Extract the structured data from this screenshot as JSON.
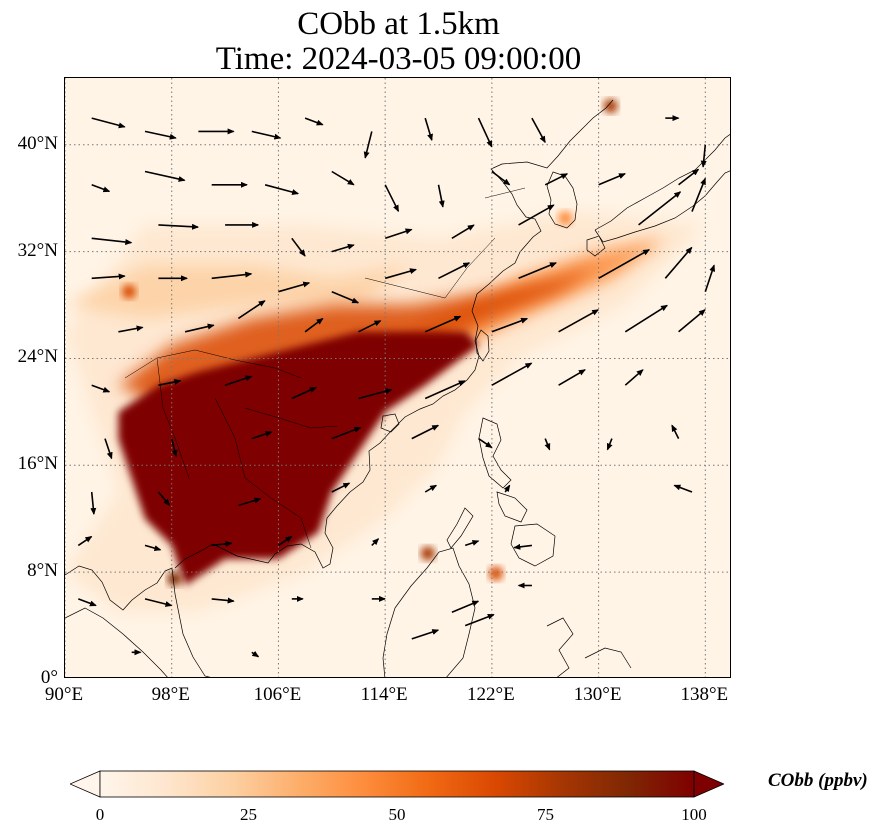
{
  "title": {
    "line1": "CObb at 1.5km",
    "line2": "Time: 2024-03-05 09:00:00"
  },
  "map": {
    "projection": "PlateCarree",
    "extent": {
      "lon_min": 90,
      "lon_max": 140,
      "lat_min": 0,
      "lat_max": 45
    },
    "gridlines": "dotted gray",
    "background_color": "#fff4e6",
    "x_ticks": [
      {
        "lon": 90,
        "label": "90°E"
      },
      {
        "lon": 98,
        "label": "98°E"
      },
      {
        "lon": 106,
        "label": "106°E"
      },
      {
        "lon": 114,
        "label": "114°E"
      },
      {
        "lon": 122,
        "label": "122°E"
      },
      {
        "lon": 130,
        "label": "130°E"
      },
      {
        "lon": 138,
        "label": "138°E"
      }
    ],
    "y_ticks": [
      {
        "lat": 0,
        "label": "0°"
      },
      {
        "lat": 8,
        "label": "8°N"
      },
      {
        "lat": 16,
        "label": "16°N"
      },
      {
        "lat": 24,
        "label": "24°N"
      },
      {
        "lat": 32,
        "label": "32°N"
      },
      {
        "lat": 40,
        "label": "40°N"
      }
    ],
    "plume_regions": [
      {
        "name": "indochina-core",
        "level": 100,
        "polygon": [
          [
            94,
            20
          ],
          [
            97,
            22
          ],
          [
            100,
            23
          ],
          [
            104,
            24
          ],
          [
            108,
            25
          ],
          [
            112,
            26
          ],
          [
            116,
            26
          ],
          [
            120,
            26
          ],
          [
            121,
            25
          ],
          [
            117,
            22
          ],
          [
            114,
            20
          ],
          [
            112,
            17
          ],
          [
            110,
            14
          ],
          [
            109,
            11
          ],
          [
            106,
            9
          ],
          [
            102,
            9
          ],
          [
            99,
            7
          ],
          [
            98,
            10
          ],
          [
            96,
            12
          ],
          [
            95,
            15
          ],
          [
            94,
            18
          ]
        ]
      },
      {
        "name": "southchina-band",
        "level": 70,
        "polygon": [
          [
            94,
            22
          ],
          [
            98,
            25
          ],
          [
            104,
            27
          ],
          [
            110,
            28
          ],
          [
            116,
            28
          ],
          [
            122,
            29
          ],
          [
            127,
            30
          ],
          [
            130,
            31
          ],
          [
            127,
            29
          ],
          [
            122,
            27
          ],
          [
            118,
            25
          ],
          [
            114,
            23
          ],
          [
            110,
            21
          ],
          [
            104,
            21
          ],
          [
            98,
            20
          ]
        ]
      },
      {
        "name": "east-plume",
        "level": 40,
        "polygon": [
          [
            112,
            24
          ],
          [
            118,
            27
          ],
          [
            124,
            30
          ],
          [
            130,
            32
          ],
          [
            135,
            33
          ],
          [
            131,
            30
          ],
          [
            124,
            27
          ],
          [
            118,
            24
          ],
          [
            114,
            22
          ]
        ]
      },
      {
        "name": "tibet-band",
        "level": 25,
        "polygon": [
          [
            90,
            28
          ],
          [
            96,
            31
          ],
          [
            104,
            31
          ],
          [
            110,
            30
          ],
          [
            116,
            31
          ],
          [
            112,
            28
          ],
          [
            104,
            28
          ],
          [
            96,
            27
          ]
        ]
      },
      {
        "name": "outer-haze",
        "level": 15,
        "polygon": [
          [
            90,
            8
          ],
          [
            94,
            14
          ],
          [
            92,
            20
          ],
          [
            90,
            26
          ],
          [
            96,
            34
          ],
          [
            108,
            34
          ],
          [
            118,
            33
          ],
          [
            128,
            35
          ],
          [
            138,
            34
          ],
          [
            132,
            28
          ],
          [
            124,
            24
          ],
          [
            120,
            20
          ],
          [
            118,
            16
          ],
          [
            114,
            12
          ],
          [
            108,
            8
          ],
          [
            100,
            5
          ],
          [
            94,
            5
          ]
        ]
      }
    ],
    "hotspots": [
      {
        "name": "hotspot-hokkaido",
        "lon": 130.9,
        "lat": 42.9,
        "level": 80
      },
      {
        "name": "hotspot-myanmar-west",
        "lon": 94.8,
        "lat": 29.0,
        "level": 70
      },
      {
        "name": "hotspot-borneo",
        "lon": 117.2,
        "lat": 9.4,
        "level": 80
      },
      {
        "name": "hotspot-mindanao",
        "lon": 122.3,
        "lat": 7.9,
        "level": 70
      },
      {
        "name": "hotspot-sumatra",
        "lon": 98.2,
        "lat": 7.5,
        "level": 90
      },
      {
        "name": "hotspot-korea-south",
        "lon": 127.5,
        "lat": 34.5,
        "level": 45
      }
    ],
    "wind_vectors": [
      {
        "lon": 92,
        "lat": 42,
        "u": 1.5,
        "v": -0.4
      },
      {
        "lon": 96,
        "lat": 41,
        "u": 1.4,
        "v": -0.3
      },
      {
        "lon": 100,
        "lat": 41,
        "u": 1.6,
        "v": 0
      },
      {
        "lon": 104,
        "lat": 41,
        "u": 1.3,
        "v": -0.3
      },
      {
        "lon": 108,
        "lat": 42,
        "u": 0.8,
        "v": -0.3
      },
      {
        "lon": 113,
        "lat": 41,
        "u": -0.3,
        "v": -1.2
      },
      {
        "lon": 117,
        "lat": 42,
        "u": 0.3,
        "v": -1
      },
      {
        "lon": 121,
        "lat": 42,
        "u": 0.6,
        "v": -1.3
      },
      {
        "lon": 125,
        "lat": 42,
        "u": 0.6,
        "v": -1.1
      },
      {
        "lon": 135,
        "lat": 42,
        "u": 0.6,
        "v": 0
      },
      {
        "lon": 138,
        "lat": 40,
        "u": -0.1,
        "v": -1
      },
      {
        "lon": 92,
        "lat": 37,
        "u": 0.8,
        "v": -0.3
      },
      {
        "lon": 96,
        "lat": 38,
        "u": 1.8,
        "v": -0.4
      },
      {
        "lon": 101,
        "lat": 37,
        "u": 1.6,
        "v": 0
      },
      {
        "lon": 105,
        "lat": 37,
        "u": 1.5,
        "v": -0.4
      },
      {
        "lon": 110,
        "lat": 38,
        "u": 1,
        "v": -0.6
      },
      {
        "lon": 114,
        "lat": 37,
        "u": 0.6,
        "v": -1.2
      },
      {
        "lon": 118,
        "lat": 37,
        "u": 0.2,
        "v": -1
      },
      {
        "lon": 122,
        "lat": 38,
        "u": 0.8,
        "v": -0.6
      },
      {
        "lon": 126,
        "lat": 37,
        "u": 1,
        "v": 0.5
      },
      {
        "lon": 130,
        "lat": 37,
        "u": 1.2,
        "v": 0.5
      },
      {
        "lon": 136,
        "lat": 37,
        "u": 0.9,
        "v": 0.7
      },
      {
        "lon": 92,
        "lat": 33,
        "u": 1.8,
        "v": -0.2
      },
      {
        "lon": 97,
        "lat": 34,
        "u": 1.8,
        "v": -0.1
      },
      {
        "lon": 102,
        "lat": 34,
        "u": 1.5,
        "v": 0
      },
      {
        "lon": 107,
        "lat": 33,
        "u": 0.6,
        "v": -0.8
      },
      {
        "lon": 110,
        "lat": 32,
        "u": 1,
        "v": 0.3
      },
      {
        "lon": 114,
        "lat": 33,
        "u": 1.2,
        "v": 0.4
      },
      {
        "lon": 119,
        "lat": 33,
        "u": 1,
        "v": 0.6
      },
      {
        "lon": 124,
        "lat": 34,
        "u": 1.6,
        "v": 0.9
      },
      {
        "lon": 133,
        "lat": 34,
        "u": 1.9,
        "v": 1.5
      },
      {
        "lon": 137,
        "lat": 35,
        "u": 0.6,
        "v": 1.5
      },
      {
        "lon": 92,
        "lat": 30,
        "u": 1.5,
        "v": 0.1
      },
      {
        "lon": 97,
        "lat": 30,
        "u": 1.3,
        "v": 0
      },
      {
        "lon": 101,
        "lat": 30,
        "u": 1.8,
        "v": 0.2
      },
      {
        "lon": 106,
        "lat": 29,
        "u": 1.4,
        "v": 0.4
      },
      {
        "lon": 110,
        "lat": 29,
        "u": 1.2,
        "v": -0.5
      },
      {
        "lon": 114,
        "lat": 30,
        "u": 1.4,
        "v": 0.4
      },
      {
        "lon": 118,
        "lat": 30,
        "u": 1.4,
        "v": 0.7
      },
      {
        "lon": 124,
        "lat": 30,
        "u": 1.7,
        "v": 0.7
      },
      {
        "lon": 130,
        "lat": 30,
        "u": 2.3,
        "v": 1.3
      },
      {
        "lon": 135,
        "lat": 30,
        "u": 1.2,
        "v": 1.4
      },
      {
        "lon": 138,
        "lat": 29,
        "u": 0.4,
        "v": 1.2
      },
      {
        "lon": 94,
        "lat": 26,
        "u": 1.1,
        "v": 0.2
      },
      {
        "lon": 99,
        "lat": 26,
        "u": 1.3,
        "v": 0.3
      },
      {
        "lon": 103,
        "lat": 27,
        "u": 1.2,
        "v": 0.8
      },
      {
        "lon": 108,
        "lat": 26,
        "u": 0.8,
        "v": 0.6
      },
      {
        "lon": 112,
        "lat": 26,
        "u": 1,
        "v": 0.5
      },
      {
        "lon": 117,
        "lat": 26,
        "u": 1.6,
        "v": 0.7
      },
      {
        "lon": 122,
        "lat": 26,
        "u": 1.6,
        "v": 0.6
      },
      {
        "lon": 127,
        "lat": 26,
        "u": 1.8,
        "v": 1
      },
      {
        "lon": 132,
        "lat": 26,
        "u": 1.9,
        "v": 1.2
      },
      {
        "lon": 136,
        "lat": 26,
        "u": 1.2,
        "v": 1
      },
      {
        "lon": 92,
        "lat": 22,
        "u": 0.8,
        "v": -0.3
      },
      {
        "lon": 97,
        "lat": 22,
        "u": 1,
        "v": 0.2
      },
      {
        "lon": 102,
        "lat": 22,
        "u": 1.2,
        "v": 0.4
      },
      {
        "lon": 107,
        "lat": 21,
        "u": 1.1,
        "v": 0.5
      },
      {
        "lon": 112,
        "lat": 21,
        "u": 1.5,
        "v": 0.4
      },
      {
        "lon": 117,
        "lat": 21,
        "u": 1.8,
        "v": 0.8
      },
      {
        "lon": 122,
        "lat": 22,
        "u": 1.8,
        "v": 1
      },
      {
        "lon": 127,
        "lat": 22,
        "u": 1.2,
        "v": 0.7
      },
      {
        "lon": 132,
        "lat": 22,
        "u": 0.8,
        "v": 0.7
      },
      {
        "lon": 93,
        "lat": 18,
        "u": 0.3,
        "v": -0.9
      },
      {
        "lon": 98,
        "lat": 18,
        "u": 0.2,
        "v": -0.8
      },
      {
        "lon": 104,
        "lat": 18,
        "u": 0.9,
        "v": 0.3
      },
      {
        "lon": 110,
        "lat": 18,
        "u": 1.3,
        "v": 0.5
      },
      {
        "lon": 116,
        "lat": 18,
        "u": 1.2,
        "v": 0.6
      },
      {
        "lon": 121,
        "lat": 18,
        "u": 0.6,
        "v": -0.4
      },
      {
        "lon": 126,
        "lat": 18,
        "u": 0.2,
        "v": -0.5
      },
      {
        "lon": 131,
        "lat": 18,
        "u": -0.2,
        "v": -0.5
      },
      {
        "lon": 136,
        "lat": 18,
        "u": -0.3,
        "v": 0.6
      },
      {
        "lon": 92,
        "lat": 14,
        "u": 0.1,
        "v": -1
      },
      {
        "lon": 97,
        "lat": 14,
        "u": 0.5,
        "v": -0.6
      },
      {
        "lon": 103,
        "lat": 13,
        "u": 1,
        "v": 0.3
      },
      {
        "lon": 110,
        "lat": 14,
        "u": 0.8,
        "v": 0.4
      },
      {
        "lon": 117,
        "lat": 14,
        "u": 0.5,
        "v": 0.3
      },
      {
        "lon": 123,
        "lat": 14,
        "u": 0.2,
        "v": 0.3
      },
      {
        "lon": 137,
        "lat": 14,
        "u": -0.8,
        "v": 0.3
      },
      {
        "lon": 91,
        "lat": 10,
        "u": 0.6,
        "v": 0.4
      },
      {
        "lon": 96,
        "lat": 10,
        "u": 0.7,
        "v": -0.2
      },
      {
        "lon": 101,
        "lat": 10,
        "u": 0.9,
        "v": 0.1
      },
      {
        "lon": 106,
        "lat": 10,
        "u": 0.6,
        "v": 0.4
      },
      {
        "lon": 113,
        "lat": 10,
        "u": 0.3,
        "v": 0.3
      },
      {
        "lon": 120,
        "lat": 10,
        "u": 0.6,
        "v": 0.2
      },
      {
        "lon": 125,
        "lat": 10,
        "u": -0.8,
        "v": -0.1
      },
      {
        "lon": 91,
        "lat": 6,
        "u": 0.8,
        "v": -0.3
      },
      {
        "lon": 96,
        "lat": 6,
        "u": 1.2,
        "v": -0.3
      },
      {
        "lon": 101,
        "lat": 6,
        "u": 1,
        "v": -0.1
      },
      {
        "lon": 107,
        "lat": 6,
        "u": 0.5,
        "v": 0
      },
      {
        "lon": 113,
        "lat": 6,
        "u": 0.6,
        "v": 0
      },
      {
        "lon": 119,
        "lat": 5,
        "u": 1.2,
        "v": 0.5
      },
      {
        "lon": 125,
        "lat": 7,
        "u": -0.6,
        "v": 0
      },
      {
        "lon": 95,
        "lat": 2,
        "u": 0.4,
        "v": 0
      },
      {
        "lon": 104,
        "lat": 2,
        "u": 0.3,
        "v": -0.2
      },
      {
        "lon": 116,
        "lat": 3,
        "u": 1.2,
        "v": 0.4
      },
      {
        "lon": 120,
        "lat": 4,
        "u": 1.3,
        "v": 0.5
      }
    ]
  },
  "colorbar": {
    "title": "CObb (ppbv)",
    "min": 0,
    "max": 100,
    "extend": "both",
    "ticks": [
      {
        "value": 0,
        "label": "0"
      },
      {
        "value": 25,
        "label": "25"
      },
      {
        "value": 50,
        "label": "50"
      },
      {
        "value": 75,
        "label": "75"
      },
      {
        "value": 100,
        "label": "100"
      }
    ],
    "colormap": [
      "#fff5eb",
      "#fee6ce",
      "#fdd0a2",
      "#fdae6b",
      "#fd8d3c",
      "#f16913",
      "#d94801",
      "#a63603",
      "#7f2704",
      "#7f0000"
    ]
  }
}
